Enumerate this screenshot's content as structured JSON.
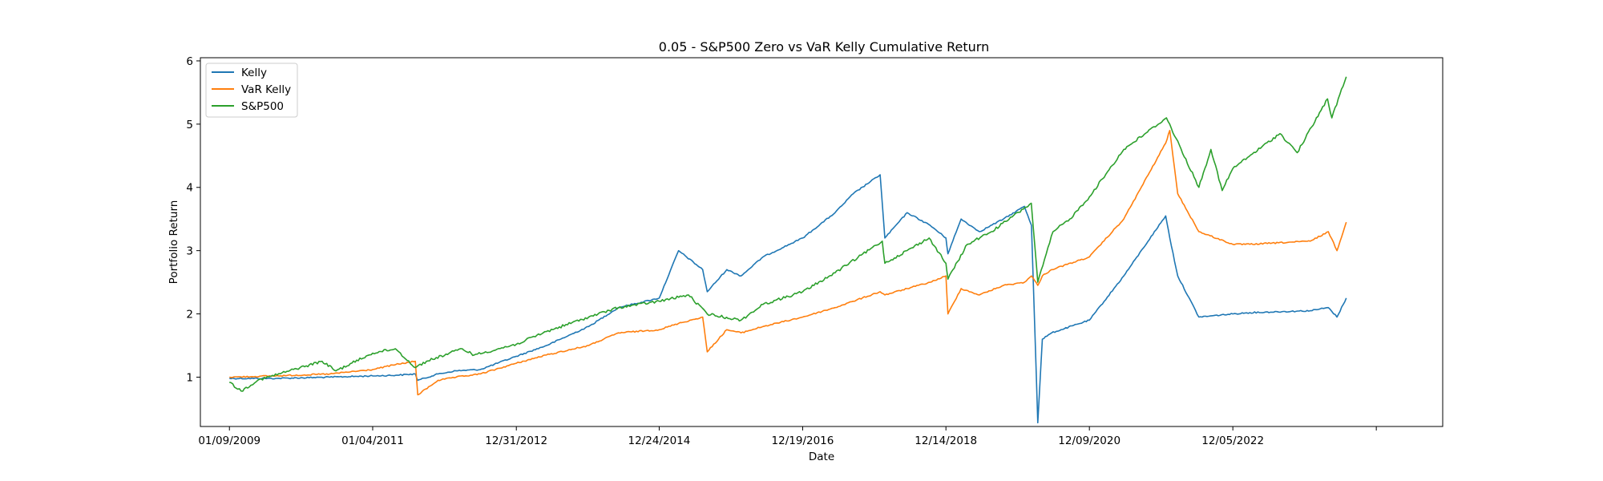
{
  "chart_data": {
    "type": "line",
    "title": "0.05 - S&P500 Zero vs VaR Kelly Cumulative Return",
    "xlabel": "Date",
    "ylabel": "Portfolio Return",
    "x_tick_labels": [
      "01/09/2009",
      "01/04/2011",
      "12/31/2012",
      "12/24/2014",
      "12/19/2016",
      "12/14/2018",
      "12/09/2020",
      "12/05/2022"
    ],
    "y_tick_labels": [
      "1",
      "2",
      "3",
      "4",
      "5",
      "6"
    ],
    "xlim": [
      "2008-08-15",
      "2025-11-01"
    ],
    "ylim": [
      0.22,
      6.05
    ],
    "grid": false,
    "legend": "upper-left",
    "colors": {
      "kelly": "#1f77b4",
      "var_kelly": "#ff7f0e",
      "sp500": "#2ca02c"
    },
    "series": [
      {
        "name": "Kelly",
        "color": "#1f77b4",
        "x": [
          "2009-01-09",
          "2009-09-01",
          "2010-06-01",
          "2011-01-04",
          "2011-05-01",
          "2011-08-08",
          "2011-08-20",
          "2011-12-01",
          "2012-03-01",
          "2012-07-01",
          "2012-12-31",
          "2013-06-01",
          "2014-01-01",
          "2014-06-01",
          "2014-12-24",
          "2015-04-01",
          "2015-08-01",
          "2015-08-24",
          "2015-12-01",
          "2016-02-11",
          "2016-06-01",
          "2016-12-19",
          "2017-06-01",
          "2017-09-01",
          "2018-01-15",
          "2018-02-08",
          "2018-06-01",
          "2018-09-25",
          "2018-12-14",
          "2018-12-24",
          "2019-03-01",
          "2019-06-01",
          "2019-10-01",
          "2020-01-15",
          "2020-02-20",
          "2020-03-23",
          "2020-04-15",
          "2020-06-01",
          "2020-12-09",
          "2021-06-01",
          "2021-12-30",
          "2022-01-20",
          "2022-03-01",
          "2022-06-16",
          "2022-12-05",
          "2023-03-01",
          "2024-01-01",
          "2024-04-01",
          "2024-05-15",
          "2024-07-01"
        ],
        "values": [
          0.98,
          0.98,
          1.0,
          1.02,
          1.03,
          1.05,
          0.95,
          1.05,
          1.1,
          1.12,
          1.33,
          1.5,
          1.8,
          2.1,
          2.25,
          3.0,
          2.7,
          2.35,
          2.7,
          2.6,
          2.9,
          3.2,
          3.6,
          3.9,
          4.2,
          3.2,
          3.6,
          3.4,
          3.2,
          2.95,
          3.5,
          3.3,
          3.5,
          3.7,
          3.4,
          0.28,
          1.6,
          1.7,
          1.9,
          2.6,
          3.55,
          3.2,
          2.6,
          1.95,
          2.0,
          2.02,
          2.05,
          2.1,
          1.95,
          2.25
        ]
      },
      {
        "name": "VaR Kelly",
        "color": "#ff7f0e",
        "x": [
          "2009-01-09",
          "2009-09-01",
          "2010-06-01",
          "2011-01-04",
          "2011-05-01",
          "2011-08-08",
          "2011-08-20",
          "2011-12-01",
          "2012-03-01",
          "2012-07-01",
          "2012-12-31",
          "2013-06-01",
          "2014-01-01",
          "2014-06-01",
          "2014-12-24",
          "2015-04-01",
          "2015-08-01",
          "2015-08-24",
          "2015-12-01",
          "2016-02-11",
          "2016-06-01",
          "2016-12-19",
          "2017-06-01",
          "2017-09-01",
          "2018-01-15",
          "2018-02-08",
          "2018-06-01",
          "2018-09-25",
          "2018-12-14",
          "2018-12-24",
          "2019-03-01",
          "2019-06-01",
          "2019-10-01",
          "2020-01-15",
          "2020-02-20",
          "2020-03-23",
          "2020-04-15",
          "2020-06-01",
          "2020-12-09",
          "2021-06-01",
          "2021-12-30",
          "2022-01-20",
          "2022-03-01",
          "2022-06-16",
          "2022-12-05",
          "2023-03-01",
          "2024-01-01",
          "2024-04-01",
          "2024-05-15",
          "2024-07-01"
        ],
        "values": [
          1.0,
          1.02,
          1.05,
          1.12,
          1.2,
          1.25,
          0.72,
          0.95,
          1.0,
          1.05,
          1.22,
          1.35,
          1.5,
          1.7,
          1.75,
          1.85,
          1.95,
          1.4,
          1.75,
          1.7,
          1.8,
          1.95,
          2.1,
          2.2,
          2.35,
          2.3,
          2.4,
          2.5,
          2.6,
          2.0,
          2.4,
          2.3,
          2.45,
          2.5,
          2.6,
          2.45,
          2.6,
          2.7,
          2.9,
          3.5,
          4.7,
          4.9,
          3.9,
          3.3,
          3.1,
          3.1,
          3.15,
          3.3,
          3.0,
          3.45
        ]
      },
      {
        "name": "S&P500",
        "color": "#2ca02c",
        "x": [
          "2009-01-09",
          "2009-03-09",
          "2009-06-01",
          "2010-01-01",
          "2010-04-23",
          "2010-07-02",
          "2011-01-04",
          "2011-04-29",
          "2011-08-08",
          "2011-10-03",
          "2012-04-01",
          "2012-06-01",
          "2012-12-31",
          "2013-06-01",
          "2014-01-01",
          "2014-06-01",
          "2014-12-24",
          "2015-05-21",
          "2015-08-24",
          "2016-02-11",
          "2016-06-01",
          "2016-12-19",
          "2017-06-01",
          "2018-01-26",
          "2018-02-08",
          "2018-09-20",
          "2018-12-14",
          "2018-12-24",
          "2019-04-01",
          "2019-08-01",
          "2020-02-19",
          "2020-03-23",
          "2020-06-08",
          "2020-09-01",
          "2020-12-09",
          "2021-06-01",
          "2022-01-03",
          "2022-06-16",
          "2022-08-16",
          "2022-10-12",
          "2022-12-05",
          "2023-07-31",
          "2023-10-27",
          "2024-03-28",
          "2024-04-19",
          "2024-07-01"
        ],
        "values": [
          0.92,
          0.78,
          0.95,
          1.15,
          1.25,
          1.1,
          1.38,
          1.45,
          1.15,
          1.25,
          1.45,
          1.35,
          1.52,
          1.72,
          1.95,
          2.1,
          2.2,
          2.3,
          2.0,
          1.9,
          2.15,
          2.35,
          2.65,
          3.15,
          2.8,
          3.2,
          2.8,
          2.55,
          3.1,
          3.3,
          3.75,
          2.5,
          3.3,
          3.5,
          3.85,
          4.6,
          5.1,
          4.0,
          4.6,
          3.95,
          4.3,
          4.85,
          4.55,
          5.4,
          5.1,
          5.75
        ]
      }
    ]
  }
}
